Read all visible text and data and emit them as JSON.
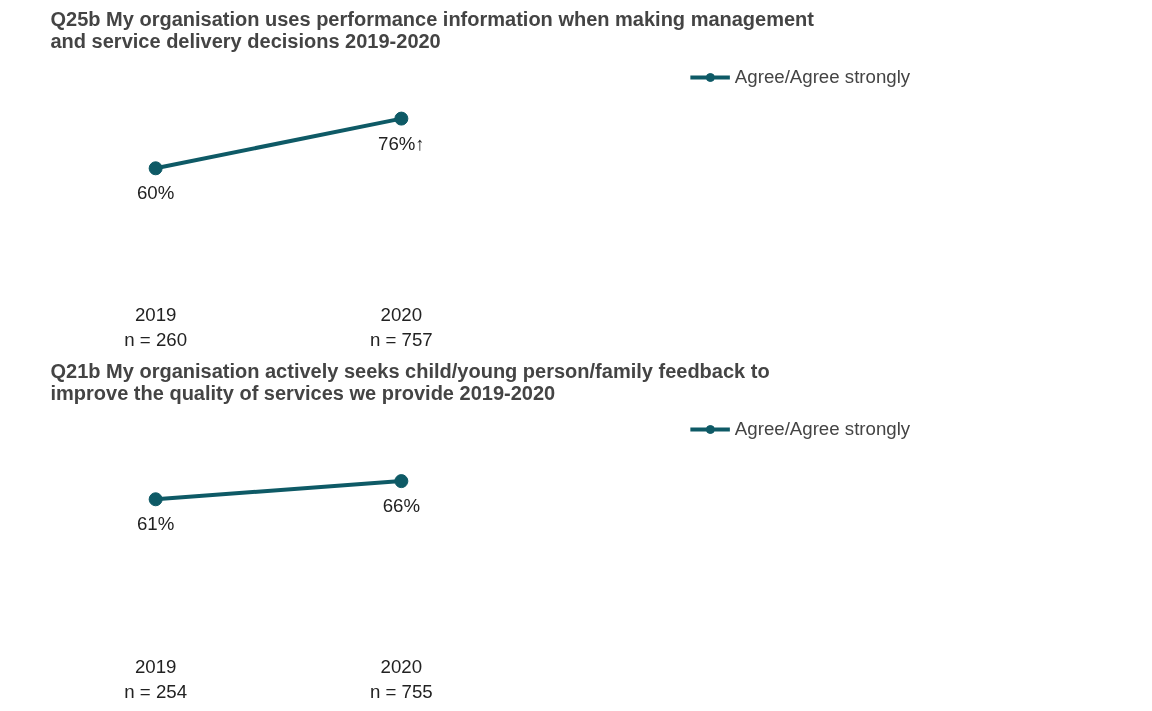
{
  "chart_data": [
    {
      "type": "line",
      "title": "Q25b My organisation uses performance information when making management\nand service delivery decisions 2019-2020",
      "categories": [
        "2019\nn = 260",
        "2020\nn = 757"
      ],
      "series": [
        {
          "name": "Agree/Agree strongly",
          "color": "#0e5a66",
          "values": [
            60,
            76
          ],
          "value_labels": [
            "60%",
            "76%↑"
          ]
        }
      ],
      "tick_labels": "x",
      "grid": false,
      "legend": "right",
      "marker": "circle",
      "line_style": "solid"
    },
    {
      "type": "line",
      "title": "Q21b My organisation actively seeks child/young person/family feedback to\nimprove the quality of services we provide 2019-2020",
      "categories": [
        "2019\nn = 254",
        "2020\nn = 755"
      ],
      "series": [
        {
          "name": "Agree/Agree strongly",
          "color": "#0e5a66",
          "values": [
            61,
            66
          ],
          "value_labels": [
            "61%",
            "66%"
          ]
        }
      ],
      "tick_labels": "x",
      "grid": false,
      "legend": "right",
      "marker": "circle",
      "line_style": "solid"
    }
  ]
}
